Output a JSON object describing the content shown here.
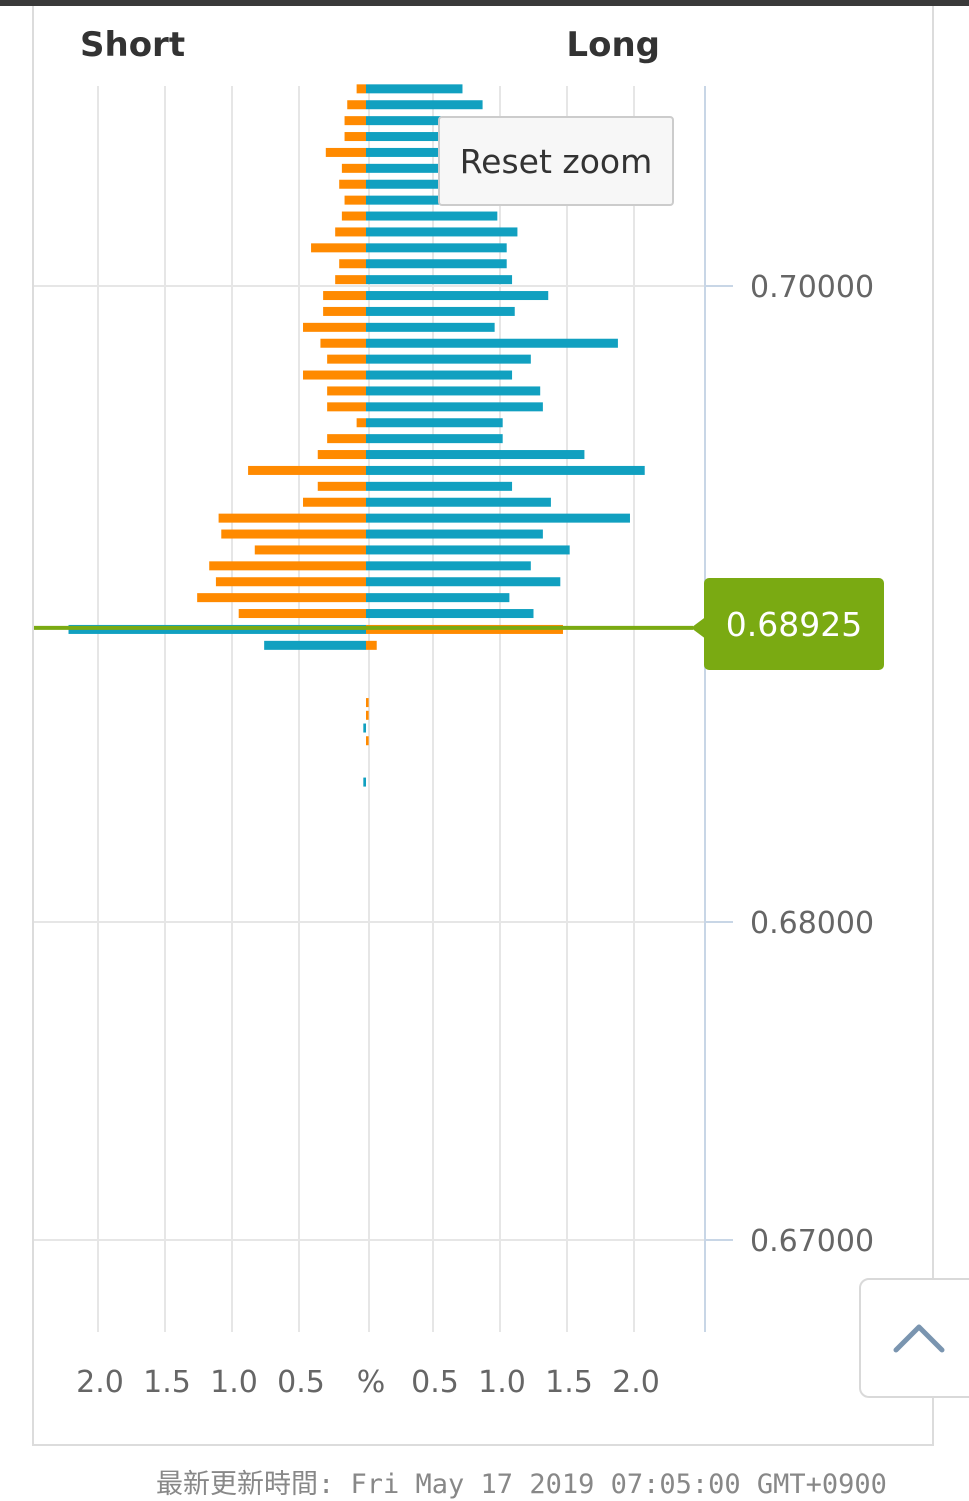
{
  "chart_data": {
    "type": "bar",
    "orientation": "horizontal-butterfly",
    "header_left": "Short",
    "header_right": "Long",
    "x_tick_labels": [
      "2.0",
      "1.5",
      "1.0",
      "0.5",
      "%",
      "0.5",
      "1.0",
      "1.5",
      "2.0"
    ],
    "y_tick_labels": [
      "0.70000",
      "0.68000",
      "0.67000"
    ],
    "y_ticks": [
      0.7,
      0.68,
      0.67
    ],
    "current_price": "0.68925",
    "current_price_value": 0.68925,
    "colors": {
      "long": "#11a0c0",
      "short": "#ff8a00",
      "price": "#7aaa12",
      "grid": "#e6e6e6",
      "axis": "#c8d6e6"
    },
    "upper_levels": [
      {
        "price": 0.7062,
        "long": 0.72,
        "short": 0.07
      },
      {
        "price": 0.7057,
        "long": 0.87,
        "short": 0.14
      },
      {
        "price": 0.7052,
        "long": 0.56,
        "short": 0.16
      },
      {
        "price": 0.7047,
        "long": 0.6,
        "short": 0.16
      },
      {
        "price": 0.7042,
        "long": 0.7,
        "short": 0.3
      },
      {
        "price": 0.7037,
        "long": 0.6,
        "short": 0.18
      },
      {
        "price": 0.7032,
        "long": 0.63,
        "short": 0.2
      },
      {
        "price": 0.7027,
        "long": 0.56,
        "short": 0.16
      },
      {
        "price": 0.7022,
        "long": 0.98,
        "short": 0.18
      },
      {
        "price": 0.7017,
        "long": 1.13,
        "short": 0.23
      },
      {
        "price": 0.7012,
        "long": 1.05,
        "short": 0.41
      },
      {
        "price": 0.7007,
        "long": 1.05,
        "short": 0.2
      },
      {
        "price": 0.7002,
        "long": 1.09,
        "short": 0.23
      },
      {
        "price": 0.6997,
        "long": 1.36,
        "short": 0.32
      },
      {
        "price": 0.6992,
        "long": 1.11,
        "short": 0.32
      },
      {
        "price": 0.6987,
        "long": 0.96,
        "short": 0.47
      },
      {
        "price": 0.6982,
        "long": 1.88,
        "short": 0.34
      },
      {
        "price": 0.6977,
        "long": 1.23,
        "short": 0.29
      },
      {
        "price": 0.6972,
        "long": 1.09,
        "short": 0.47
      },
      {
        "price": 0.6967,
        "long": 1.3,
        "short": 0.29
      },
      {
        "price": 0.6962,
        "long": 1.32,
        "short": 0.29
      },
      {
        "price": 0.6957,
        "long": 1.02,
        "short": 0.07
      },
      {
        "price": 0.6952,
        "long": 1.02,
        "short": 0.29
      },
      {
        "price": 0.6947,
        "long": 1.63,
        "short": 0.36
      },
      {
        "price": 0.6942,
        "long": 2.08,
        "short": 0.88
      },
      {
        "price": 0.6937,
        "long": 1.09,
        "short": 0.36
      },
      {
        "price": 0.6932,
        "long": 1.38,
        "short": 0.47
      },
      {
        "price": 0.6927,
        "long": 1.97,
        "short": 1.1
      },
      {
        "price": 0.6922,
        "long": 1.32,
        "short": 1.08
      },
      {
        "price": 0.6917,
        "long": 1.52,
        "short": 0.83
      },
      {
        "price": 0.6912,
        "long": 1.23,
        "short": 1.17
      },
      {
        "price": 0.6907,
        "long": 1.45,
        "short": 1.12
      },
      {
        "price": 0.6902,
        "long": 1.07,
        "short": 1.26
      },
      {
        "price": 0.6897,
        "long": 1.25,
        "short": 0.95
      }
    ],
    "lower_levels": [
      {
        "price": 0.6892,
        "long": 1.47,
        "short": 2.22
      },
      {
        "price": 0.6887,
        "long": 0.08,
        "short": 0.76
      },
      {
        "price": 0.6869,
        "long": 0.02,
        "short": 0.0
      },
      {
        "price": 0.6865,
        "long": 0.02,
        "short": 0.0
      },
      {
        "price": 0.6861,
        "long": 0.0,
        "short": 0.02
      },
      {
        "price": 0.6857,
        "long": 0.02,
        "short": 0.0
      },
      {
        "price": 0.6844,
        "long": 0.0,
        "short": 0.02
      }
    ]
  },
  "ui": {
    "reset_zoom_label": "Reset zoom",
    "price_tag": "0.68925",
    "scroll_top_icon": "chevron-up-icon",
    "footer": "最新更新時間: Fri May 17 2019 07:05:00 GMT+0900"
  }
}
